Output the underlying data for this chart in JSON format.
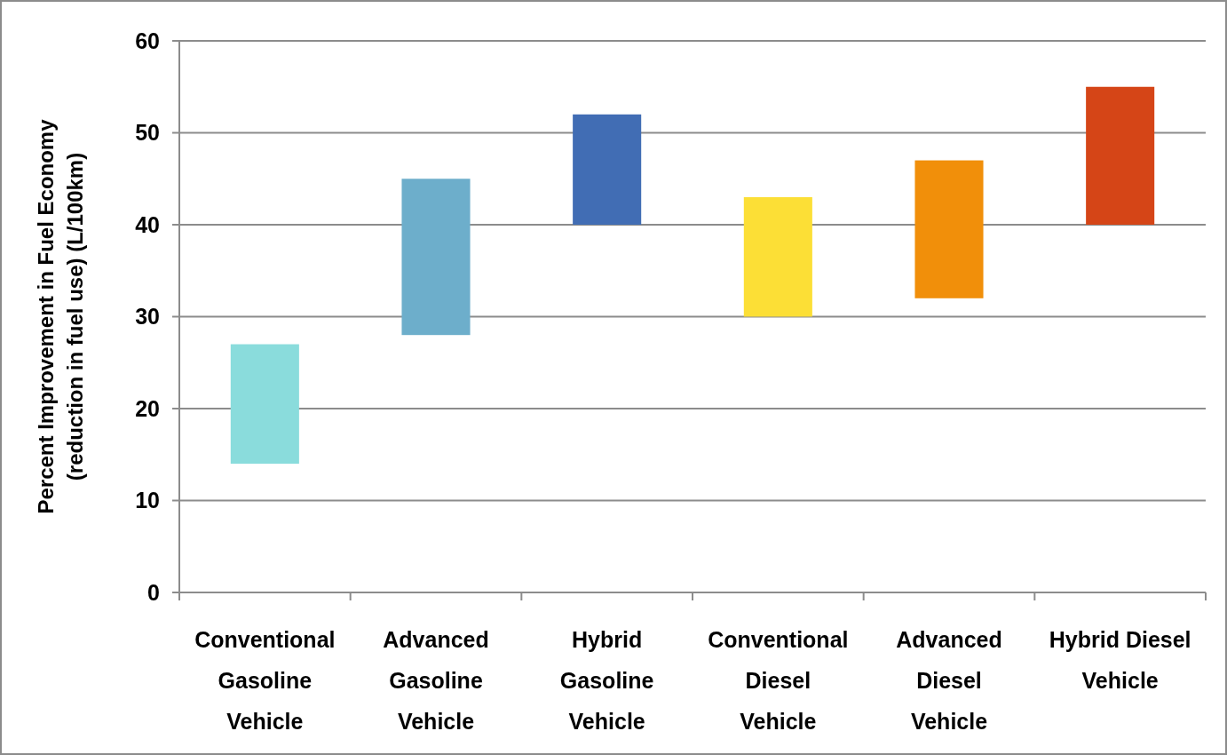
{
  "chart_data": {
    "type": "bar",
    "ylabel": "Percent Improvement in Fuel Economy\n(reduction in fuel use) (L/100km)",
    "categories": [
      "Conventional Gasoline Vehicle",
      "Advanced Gasoline Vehicle",
      "Hybrid Gasoline Vehicle",
      "Conventional Diesel Vehicle",
      "Advanced Diesel Vehicle",
      "Hybrid Diesel Vehicle"
    ],
    "base": [
      14,
      28,
      40,
      30,
      32,
      40
    ],
    "values": [
      13,
      17,
      12,
      13,
      15,
      15
    ],
    "colors": [
      "#8adcdc",
      "#6daecb",
      "#416db4",
      "#fcdf36",
      "#f18f0a",
      "#d54517"
    ],
    "ylim": [
      0,
      60
    ],
    "yticks": [
      0,
      10,
      20,
      30,
      40,
      50,
      60
    ],
    "grid": "y"
  }
}
